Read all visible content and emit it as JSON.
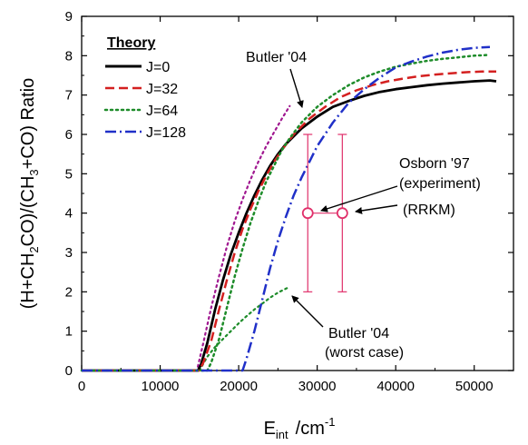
{
  "chart_data": {
    "type": "line",
    "xlabel": "E_int /cm^-1",
    "xlabel_parts": {
      "main": "E",
      "sub": "int",
      "unit": "/cm",
      "sup": "-1"
    },
    "ylabel": "(H+CH2CO)/(CH3+CO) Ratio",
    "ylabel_parts": [
      {
        "t": "(H+CH",
        "k": "n"
      },
      {
        "t": "2",
        "k": "sub"
      },
      {
        "t": "CO)/(CH",
        "k": "n"
      },
      {
        "t": "3",
        "k": "sub"
      },
      {
        "t": "+CO) Ratio",
        "k": "n"
      }
    ],
    "xlim": [
      0,
      55000
    ],
    "ylim": [
      0,
      9
    ],
    "xticks": [
      0,
      10000,
      20000,
      30000,
      40000,
      50000
    ],
    "yticks": [
      0,
      1,
      2,
      3,
      4,
      5,
      6,
      7,
      8,
      9
    ],
    "grid": false,
    "legend": {
      "title": "Theory",
      "placement": "top-left"
    },
    "series": [
      {
        "name": "J=0",
        "color": "#000000",
        "dash": "solid",
        "x": [
          0,
          14800,
          15200,
          16000,
          17000,
          18000,
          19000,
          20000,
          21000,
          22000,
          23000,
          24000,
          25000,
          26000,
          28000,
          30000,
          32000,
          34000,
          36000,
          38000,
          40000,
          42000,
          44000,
          46000,
          48000,
          50000,
          52000,
          52800
        ],
        "y": [
          0,
          0,
          0.15,
          0.7,
          1.55,
          2.3,
          2.95,
          3.5,
          4.0,
          4.45,
          4.85,
          5.2,
          5.5,
          5.75,
          6.15,
          6.45,
          6.7,
          6.85,
          6.98,
          7.08,
          7.15,
          7.2,
          7.25,
          7.29,
          7.32,
          7.35,
          7.37,
          7.35
        ]
      },
      {
        "name": "J=32",
        "color": "#d42020",
        "dash": "dashed",
        "x": [
          0,
          15000,
          15500,
          16500,
          17500,
          18500,
          19500,
          20500,
          21500,
          22500,
          23500,
          24500,
          25500,
          27000,
          29000,
          31000,
          33000,
          35000,
          37000,
          39000,
          41000,
          43000,
          45000,
          47000,
          49000,
          51000,
          52800
        ],
        "y": [
          0,
          0,
          0.2,
          0.75,
          1.55,
          2.3,
          3.0,
          3.6,
          4.1,
          4.55,
          4.95,
          5.3,
          5.6,
          6.0,
          6.4,
          6.7,
          6.95,
          7.12,
          7.25,
          7.35,
          7.42,
          7.48,
          7.52,
          7.55,
          7.58,
          7.6,
          7.6
        ]
      },
      {
        "name": "J=64",
        "color": "#1e8c2a",
        "dash": "dotted",
        "x": [
          0,
          16000,
          16500,
          17500,
          18500,
          19500,
          20500,
          21500,
          22500,
          23500,
          24500,
          25500,
          26500,
          28000,
          30000,
          32000,
          34000,
          36000,
          38000,
          40000,
          42000,
          44000,
          46000,
          48000,
          50000,
          52000
        ],
        "y": [
          0,
          0,
          0.2,
          0.8,
          1.6,
          2.4,
          3.1,
          3.75,
          4.3,
          4.8,
          5.2,
          5.6,
          5.9,
          6.3,
          6.7,
          7.0,
          7.25,
          7.45,
          7.6,
          7.72,
          7.8,
          7.87,
          7.92,
          7.96,
          8.0,
          8.02
        ]
      },
      {
        "name": "J=128",
        "color": "#2030c8",
        "dash": "dashdot",
        "x": [
          0,
          20500,
          21000,
          22000,
          23000,
          24000,
          25000,
          26000,
          27000,
          28000,
          29000,
          30000,
          32000,
          34000,
          36000,
          38000,
          40000,
          42000,
          44000,
          46000,
          48000,
          50000,
          52000
        ],
        "y": [
          0,
          0,
          0.3,
          1.0,
          1.8,
          2.6,
          3.3,
          3.9,
          4.45,
          4.9,
          5.3,
          5.7,
          6.3,
          6.8,
          7.15,
          7.45,
          7.7,
          7.85,
          7.98,
          8.08,
          8.15,
          8.2,
          8.22
        ]
      }
    ],
    "extra_curves": [
      {
        "label": "Butler '04",
        "color": "#a01890",
        "dash": "dotted",
        "x": [
          14800,
          15500,
          16500,
          17500,
          18500,
          19500,
          20500,
          21500,
          22500,
          23500,
          24500,
          25500,
          26500
        ],
        "y": [
          0.1,
          0.7,
          1.6,
          2.4,
          3.15,
          3.8,
          4.35,
          4.85,
          5.3,
          5.7,
          6.05,
          6.4,
          6.72
        ]
      },
      {
        "label": "Butler '04 (worst case)",
        "color": "#1e8c2a",
        "dash": "dotted",
        "x": [
          15000,
          16000,
          17000,
          18000,
          19000,
          20000,
          21000,
          22000,
          23000,
          24000,
          25000,
          26000,
          26500
        ],
        "y": [
          0.0,
          0.35,
          0.6,
          0.8,
          1.0,
          1.2,
          1.38,
          1.55,
          1.7,
          1.85,
          1.98,
          2.08,
          2.12
        ]
      }
    ],
    "experiment": {
      "label": "Osborn '97",
      "color": "#e0306a",
      "points": [
        {
          "name": "experiment",
          "x": 28800,
          "y": 4.0,
          "ylow": 2.0,
          "yhigh": 6.0
        },
        {
          "name": "RRKM",
          "x": 33200,
          "y": 4.0,
          "ylow": 2.0,
          "yhigh": 6.0
        }
      ]
    },
    "annotations": [
      {
        "id": "butler",
        "text": "Butler '04"
      },
      {
        "id": "osborn",
        "lines": [
          "Osborn '97",
          "(experiment)",
          "(RRKM)"
        ]
      },
      {
        "id": "butler-worst",
        "lines": [
          "Butler '04",
          "(worst case)"
        ]
      }
    ]
  }
}
